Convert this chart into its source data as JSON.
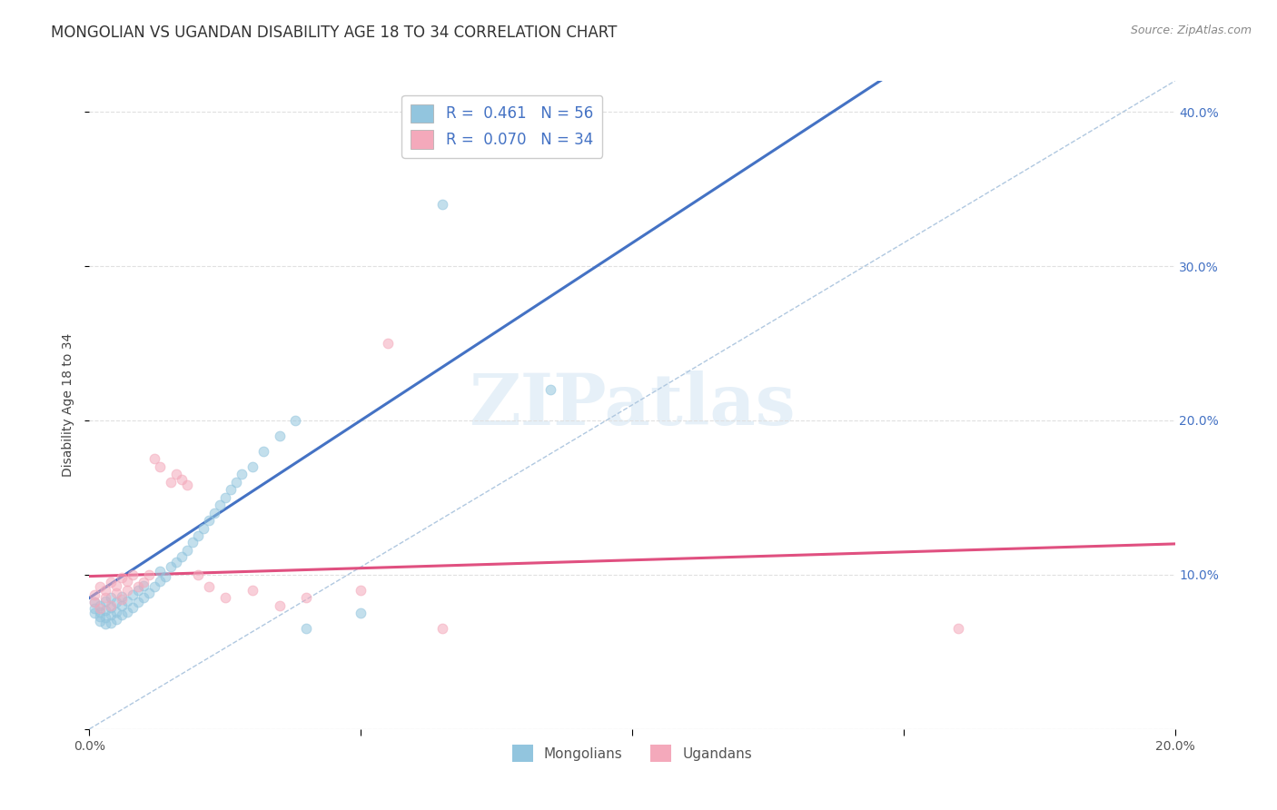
{
  "title": "MONGOLIAN VS UGANDAN DISABILITY AGE 18 TO 34 CORRELATION CHART",
  "source": "Source: ZipAtlas.com",
  "ylabel": "Disability Age 18 to 34",
  "xlim": [
    0.0,
    0.2
  ],
  "ylim": [
    0.0,
    0.42
  ],
  "x_ticks": [
    0.0,
    0.05,
    0.1,
    0.15,
    0.2
  ],
  "y_ticks": [
    0.0,
    0.1,
    0.2,
    0.3,
    0.4
  ],
  "x_tick_labels": [
    "0.0%",
    "",
    "",
    "",
    "20.0%"
  ],
  "y_tick_labels_right": [
    "",
    "10.0%",
    "20.0%",
    "30.0%",
    "40.0%"
  ],
  "mongolian_color": "#92c5de",
  "ugandan_color": "#f4a9bb",
  "mongolian_R": 0.461,
  "mongolian_N": 56,
  "ugandan_R": 0.07,
  "ugandan_N": 34,
  "legend_mongolians": "Mongolians",
  "legend_ugandans": "Ugandans",
  "mongolian_scatter_x": [
    0.001,
    0.001,
    0.001,
    0.002,
    0.002,
    0.002,
    0.002,
    0.003,
    0.003,
    0.003,
    0.003,
    0.004,
    0.004,
    0.004,
    0.004,
    0.005,
    0.005,
    0.005,
    0.006,
    0.006,
    0.006,
    0.007,
    0.007,
    0.008,
    0.008,
    0.009,
    0.009,
    0.01,
    0.01,
    0.011,
    0.012,
    0.013,
    0.013,
    0.014,
    0.015,
    0.016,
    0.017,
    0.018,
    0.019,
    0.02,
    0.021,
    0.022,
    0.023,
    0.024,
    0.025,
    0.026,
    0.027,
    0.028,
    0.03,
    0.032,
    0.035,
    0.038,
    0.04,
    0.05,
    0.065,
    0.085
  ],
  "mongolian_scatter_y": [
    0.075,
    0.078,
    0.082,
    0.07,
    0.073,
    0.076,
    0.08,
    0.068,
    0.072,
    0.077,
    0.083,
    0.069,
    0.074,
    0.079,
    0.085,
    0.071,
    0.076,
    0.082,
    0.074,
    0.08,
    0.086,
    0.076,
    0.083,
    0.079,
    0.087,
    0.082,
    0.09,
    0.085,
    0.093,
    0.088,
    0.092,
    0.096,
    0.102,
    0.099,
    0.105,
    0.108,
    0.112,
    0.116,
    0.121,
    0.125,
    0.13,
    0.135,
    0.14,
    0.145,
    0.15,
    0.155,
    0.16,
    0.165,
    0.17,
    0.18,
    0.19,
    0.2,
    0.065,
    0.075,
    0.34,
    0.22
  ],
  "ugandan_scatter_x": [
    0.001,
    0.001,
    0.002,
    0.002,
    0.003,
    0.003,
    0.004,
    0.004,
    0.005,
    0.005,
    0.006,
    0.006,
    0.007,
    0.007,
    0.008,
    0.009,
    0.01,
    0.011,
    0.012,
    0.013,
    0.015,
    0.016,
    0.017,
    0.018,
    0.02,
    0.022,
    0.025,
    0.03,
    0.035,
    0.04,
    0.05,
    0.055,
    0.065,
    0.16
  ],
  "ugandan_scatter_y": [
    0.082,
    0.087,
    0.078,
    0.092,
    0.085,
    0.09,
    0.08,
    0.095,
    0.088,
    0.093,
    0.084,
    0.098,
    0.09,
    0.096,
    0.1,
    0.092,
    0.095,
    0.1,
    0.175,
    0.17,
    0.16,
    0.165,
    0.162,
    0.158,
    0.1,
    0.092,
    0.085,
    0.09,
    0.08,
    0.085,
    0.09,
    0.25,
    0.065,
    0.065
  ],
  "background_color": "#ffffff",
  "grid_color": "#e0e0e0",
  "title_fontsize": 12,
  "axis_label_fontsize": 10,
  "tick_fontsize": 10,
  "scatter_size": 60,
  "scatter_alpha": 0.55
}
